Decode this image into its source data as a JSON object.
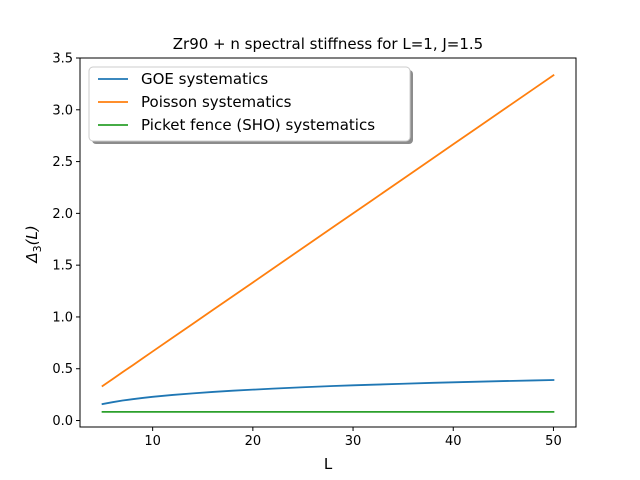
{
  "chart_data": {
    "type": "line",
    "title": "Zr90 + n  spectral stiffness for L=1, J=1.5",
    "xlabel": "L",
    "ylabel": "Δ3(L)",
    "ylabel_main": "Δ",
    "ylabel_sub": "3",
    "ylabel_tail": "(L)",
    "xlim": [
      2.75,
      52.25
    ],
    "ylim": [
      -0.0625,
      3.5
    ],
    "xticks": [
      10,
      20,
      30,
      40,
      50
    ],
    "yticks": [
      0.0,
      0.5,
      1.0,
      1.5,
      2.0,
      2.5,
      3.0,
      3.5
    ],
    "xtick_labels": [
      "10",
      "20",
      "30",
      "40",
      "50"
    ],
    "ytick_labels": [
      "0.0",
      "0.5",
      "1.0",
      "1.5",
      "2.0",
      "2.5",
      "3.0",
      "3.5"
    ],
    "grid": false,
    "legend_position": "top-left",
    "x": [
      5,
      6,
      7,
      8,
      9,
      10,
      12,
      14,
      16,
      18,
      20,
      22,
      25,
      28,
      30,
      32,
      35,
      38,
      40,
      42,
      45,
      48,
      50
    ],
    "series": [
      {
        "name": "GOE systematics",
        "color": "#1f77b4",
        "values": [
          0.159,
          0.177,
          0.193,
          0.206,
          0.218,
          0.229,
          0.247,
          0.262,
          0.276,
          0.288,
          0.298,
          0.308,
          0.321,
          0.333,
          0.34,
          0.346,
          0.355,
          0.364,
          0.369,
          0.374,
          0.381,
          0.387,
          0.391
        ]
      },
      {
        "name": "Poisson systematics",
        "color": "#ff7f0e",
        "values": [
          0.333,
          0.4,
          0.467,
          0.533,
          0.6,
          0.667,
          0.8,
          0.933,
          1.067,
          1.2,
          1.333,
          1.467,
          1.667,
          1.867,
          2.0,
          2.133,
          2.333,
          2.533,
          2.667,
          2.8,
          3.0,
          3.2,
          3.333
        ]
      },
      {
        "name": "Picket fence (SHO) systematics",
        "color": "#2ca02c",
        "values": [
          0.0833,
          0.0833,
          0.0833,
          0.0833,
          0.0833,
          0.0833,
          0.0833,
          0.0833,
          0.0833,
          0.0833,
          0.0833,
          0.0833,
          0.0833,
          0.0833,
          0.0833,
          0.0833,
          0.0833,
          0.0833,
          0.0833,
          0.0833,
          0.0833,
          0.0833,
          0.0833
        ]
      }
    ]
  }
}
